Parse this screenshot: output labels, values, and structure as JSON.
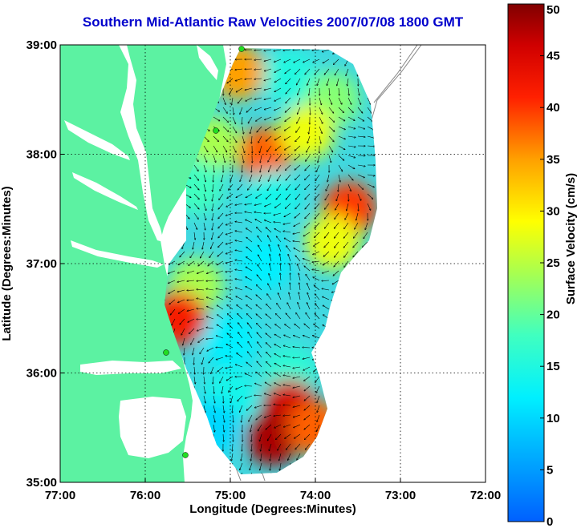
{
  "chart_data": {
    "type": "heatmap",
    "title": "Southern Mid-Atlantic Raw Velocities 2007/07/08 1800 GMT",
    "xlabel": "Longitude (Degrees:Minutes)",
    "ylabel": "Latitude (Degrees:Minutes)",
    "colorbar_label": "Surface Velocity (cm/s)",
    "x_range": [
      -77,
      -72
    ],
    "y_range": [
      35,
      39
    ],
    "x_ticks": [
      {
        "value": -77,
        "label": "77:00"
      },
      {
        "value": -76,
        "label": "76:00"
      },
      {
        "value": -75,
        "label": "75:00"
      },
      {
        "value": -74,
        "label": "74:00"
      },
      {
        "value": -73,
        "label": "73:00"
      },
      {
        "value": -72,
        "label": "72:00"
      }
    ],
    "y_ticks": [
      {
        "value": 35,
        "label": "35:00"
      },
      {
        "value": 36,
        "label": "36:00"
      },
      {
        "value": 37,
        "label": "37:00"
      },
      {
        "value": 38,
        "label": "38:00"
      },
      {
        "value": 39,
        "label": "39:00"
      }
    ],
    "colorbar_range": [
      0,
      50
    ],
    "colorbar_ticks": [
      "0",
      "5",
      "10",
      "15",
      "20",
      "25",
      "30",
      "35",
      "40",
      "45",
      "50"
    ],
    "grid": true,
    "velocity_regions": [
      {
        "lon": -74.9,
        "lat": 38.75,
        "speed": 35
      },
      {
        "lon": -74.3,
        "lat": 38.7,
        "speed": 15
      },
      {
        "lon": -73.8,
        "lat": 38.5,
        "speed": 22
      },
      {
        "lon": -74.6,
        "lat": 38.0,
        "speed": 38
      },
      {
        "lon": -74.1,
        "lat": 38.2,
        "speed": 28
      },
      {
        "lon": -75.2,
        "lat": 38.1,
        "speed": 24
      },
      {
        "lon": -75.4,
        "lat": 37.7,
        "speed": 18
      },
      {
        "lon": -74.5,
        "lat": 37.6,
        "speed": 14
      },
      {
        "lon": -73.6,
        "lat": 37.5,
        "speed": 40
      },
      {
        "lon": -73.8,
        "lat": 37.2,
        "speed": 28
      },
      {
        "lon": -74.6,
        "lat": 37.0,
        "speed": 12
      },
      {
        "lon": -75.4,
        "lat": 36.8,
        "speed": 24
      },
      {
        "lon": -75.6,
        "lat": 36.5,
        "speed": 42
      },
      {
        "lon": -75.0,
        "lat": 36.3,
        "speed": 12
      },
      {
        "lon": -74.3,
        "lat": 36.0,
        "speed": 16
      },
      {
        "lon": -74.3,
        "lat": 35.7,
        "speed": 46
      },
      {
        "lon": -74.5,
        "lat": 35.4,
        "speed": 48
      },
      {
        "lon": -74.0,
        "lat": 35.5,
        "speed": 38
      },
      {
        "lon": -75.0,
        "lat": 35.8,
        "speed": 14
      },
      {
        "lon": -75.2,
        "lat": 35.5,
        "speed": 10
      }
    ]
  },
  "colors": {
    "land": "#5cf2a2",
    "water": "#ffffff",
    "title": "#0000cc",
    "station": "#22dd22"
  }
}
